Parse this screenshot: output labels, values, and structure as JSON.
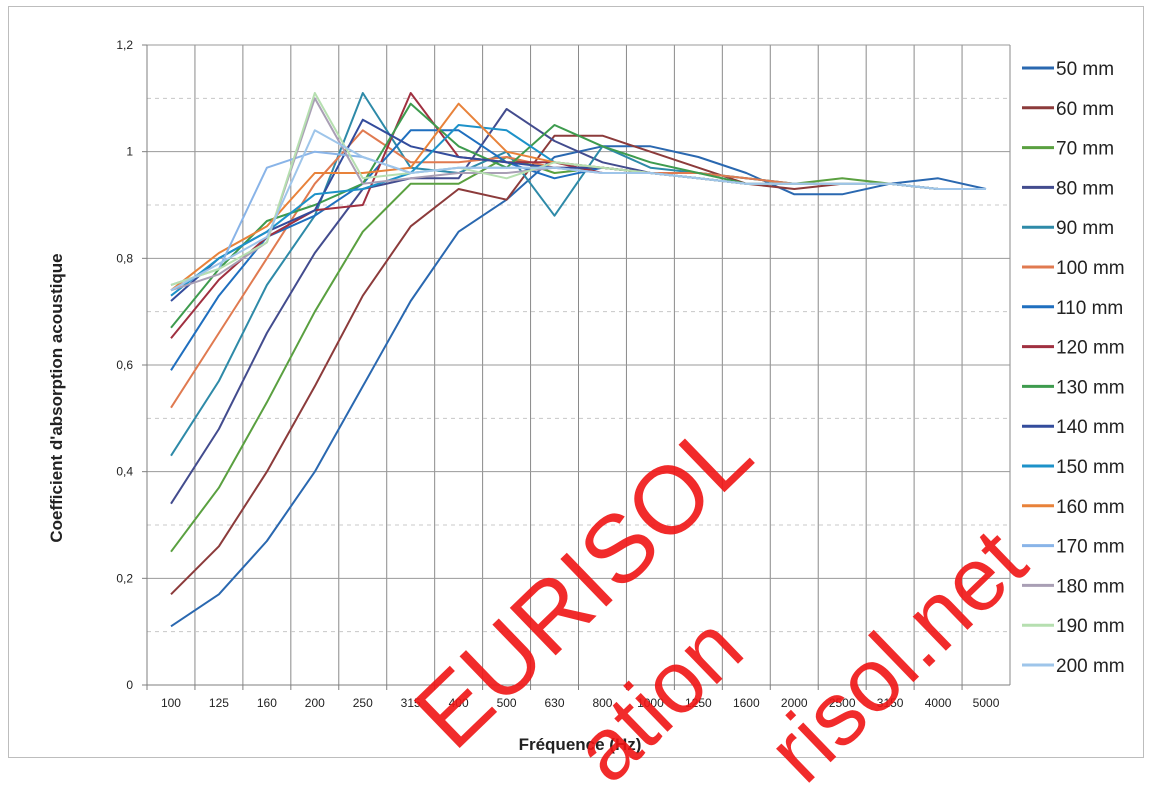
{
  "chart_data": {
    "type": "line",
    "title": "",
    "xlabel": "Fréquence (Hz)",
    "ylabel": "Coefficient d'absorption acoustique",
    "ylim": [
      0,
      1.2
    ],
    "yticks": [
      "0",
      "0,2",
      "0,4",
      "0,6",
      "0,8",
      "1",
      "1,2"
    ],
    "grid": true,
    "legend_position": "right",
    "categories": [
      "100",
      "125",
      "160",
      "200",
      "250",
      "315",
      "400",
      "500",
      "630",
      "800",
      "1000",
      "1250",
      "1600",
      "2000",
      "2500",
      "3150",
      "4000",
      "5000"
    ],
    "series": [
      {
        "name": "50 mm",
        "color": "#2a68b0",
        "values": [
          0.11,
          0.17,
          0.27,
          0.4,
          0.56,
          0.72,
          0.85,
          0.91,
          0.99,
          1.01,
          1.01,
          0.99,
          0.96,
          0.92,
          0.92,
          0.94,
          0.95,
          0.93
        ]
      },
      {
        "name": "60 mm",
        "color": "#8c3b3b",
        "values": [
          0.17,
          0.26,
          0.4,
          0.56,
          0.73,
          0.86,
          0.93,
          0.91,
          1.03,
          1.03,
          1.0,
          0.97,
          0.94,
          0.93,
          0.94,
          0.94,
          0.93,
          0.93
        ]
      },
      {
        "name": "70 mm",
        "color": "#5aa040",
        "values": [
          0.25,
          0.37,
          0.53,
          0.7,
          0.85,
          0.94,
          0.94,
          0.99,
          0.96,
          0.97,
          0.96,
          0.96,
          0.95,
          0.94,
          0.95,
          0.94,
          0.93,
          0.93
        ]
      },
      {
        "name": "80 mm",
        "color": "#434c8e",
        "values": [
          0.34,
          0.48,
          0.66,
          0.81,
          0.93,
          0.95,
          0.95,
          1.08,
          1.02,
          0.98,
          0.96,
          0.95,
          0.94,
          0.94,
          0.94,
          0.94,
          0.93,
          0.93
        ]
      },
      {
        "name": "90 mm",
        "color": "#2e8aa8",
        "values": [
          0.43,
          0.57,
          0.75,
          0.88,
          1.11,
          0.97,
          0.96,
          1.0,
          0.88,
          1.01,
          0.97,
          0.96,
          0.95,
          0.94,
          0.94,
          0.94,
          0.93,
          0.93
        ]
      },
      {
        "name": "100 mm",
        "color": "#e07a50",
        "values": [
          0.52,
          0.66,
          0.8,
          0.94,
          1.04,
          0.98,
          0.98,
          0.99,
          0.97,
          0.97,
          0.96,
          0.96,
          0.95,
          0.94,
          0.94,
          0.94,
          0.93,
          0.93
        ]
      },
      {
        "name": "110 mm",
        "color": "#1f6fbf",
        "values": [
          0.59,
          0.73,
          0.84,
          0.88,
          0.94,
          1.04,
          1.04,
          0.98,
          0.95,
          0.97,
          0.96,
          0.95,
          0.94,
          0.94,
          0.94,
          0.94,
          0.93,
          0.93
        ]
      },
      {
        "name": "120 mm",
        "color": "#a03040",
        "values": [
          0.65,
          0.76,
          0.84,
          0.89,
          0.9,
          1.11,
          0.99,
          0.98,
          0.98,
          0.96,
          0.96,
          0.95,
          0.94,
          0.94,
          0.94,
          0.94,
          0.93,
          0.93
        ]
      },
      {
        "name": "130 mm",
        "color": "#3e9b4e",
        "values": [
          0.67,
          0.78,
          0.87,
          0.9,
          0.94,
          1.09,
          1.01,
          0.97,
          1.05,
          1.01,
          0.98,
          0.96,
          0.94,
          0.94,
          0.94,
          0.94,
          0.93,
          0.93
        ]
      },
      {
        "name": "140 mm",
        "color": "#334c9c",
        "values": [
          0.72,
          0.8,
          0.85,
          0.89,
          1.06,
          1.01,
          0.99,
          0.98,
          0.97,
          0.97,
          0.96,
          0.95,
          0.94,
          0.94,
          0.94,
          0.94,
          0.93,
          0.93
        ]
      },
      {
        "name": "150 mm",
        "color": "#1d92c9",
        "values": [
          0.73,
          0.8,
          0.85,
          0.92,
          0.93,
          0.96,
          1.05,
          1.04,
          0.98,
          0.97,
          0.96,
          0.95,
          0.94,
          0.94,
          0.94,
          0.94,
          0.93,
          0.93
        ]
      },
      {
        "name": "160 mm",
        "color": "#e8823a",
        "values": [
          0.74,
          0.81,
          0.86,
          0.96,
          0.96,
          0.97,
          1.09,
          1.0,
          0.98,
          0.97,
          0.96,
          0.95,
          0.94,
          0.94,
          0.94,
          0.94,
          0.93,
          0.93
        ]
      },
      {
        "name": "170 mm",
        "color": "#89b4e8",
        "values": [
          0.75,
          0.78,
          0.97,
          1.0,
          0.99,
          0.96,
          0.97,
          0.97,
          0.97,
          0.96,
          0.96,
          0.95,
          0.94,
          0.94,
          0.94,
          0.94,
          0.93,
          0.93
        ]
      },
      {
        "name": "180 mm",
        "color": "#a99fb5",
        "values": [
          0.74,
          0.77,
          0.83,
          1.1,
          0.94,
          0.95,
          0.96,
          0.96,
          0.97,
          0.96,
          0.96,
          0.95,
          0.94,
          0.94,
          0.94,
          0.94,
          0.93,
          0.93
        ]
      },
      {
        "name": "190 mm",
        "color": "#b6dfb0",
        "values": [
          0.75,
          0.78,
          0.83,
          1.11,
          0.95,
          0.96,
          0.97,
          0.95,
          0.98,
          0.97,
          0.96,
          0.95,
          0.94,
          0.94,
          0.94,
          0.94,
          0.93,
          0.93
        ]
      },
      {
        "name": "200 mm",
        "color": "#9ec5ea",
        "values": [
          0.74,
          0.79,
          0.84,
          1.04,
          0.99,
          0.96,
          0.97,
          0.97,
          0.97,
          0.96,
          0.96,
          0.95,
          0.94,
          0.94,
          0.94,
          0.94,
          0.93,
          0.93
        ]
      }
    ]
  },
  "watermark": {
    "line1": "EURISOL",
    "line2": "ation",
    "line3": "risol.net"
  }
}
